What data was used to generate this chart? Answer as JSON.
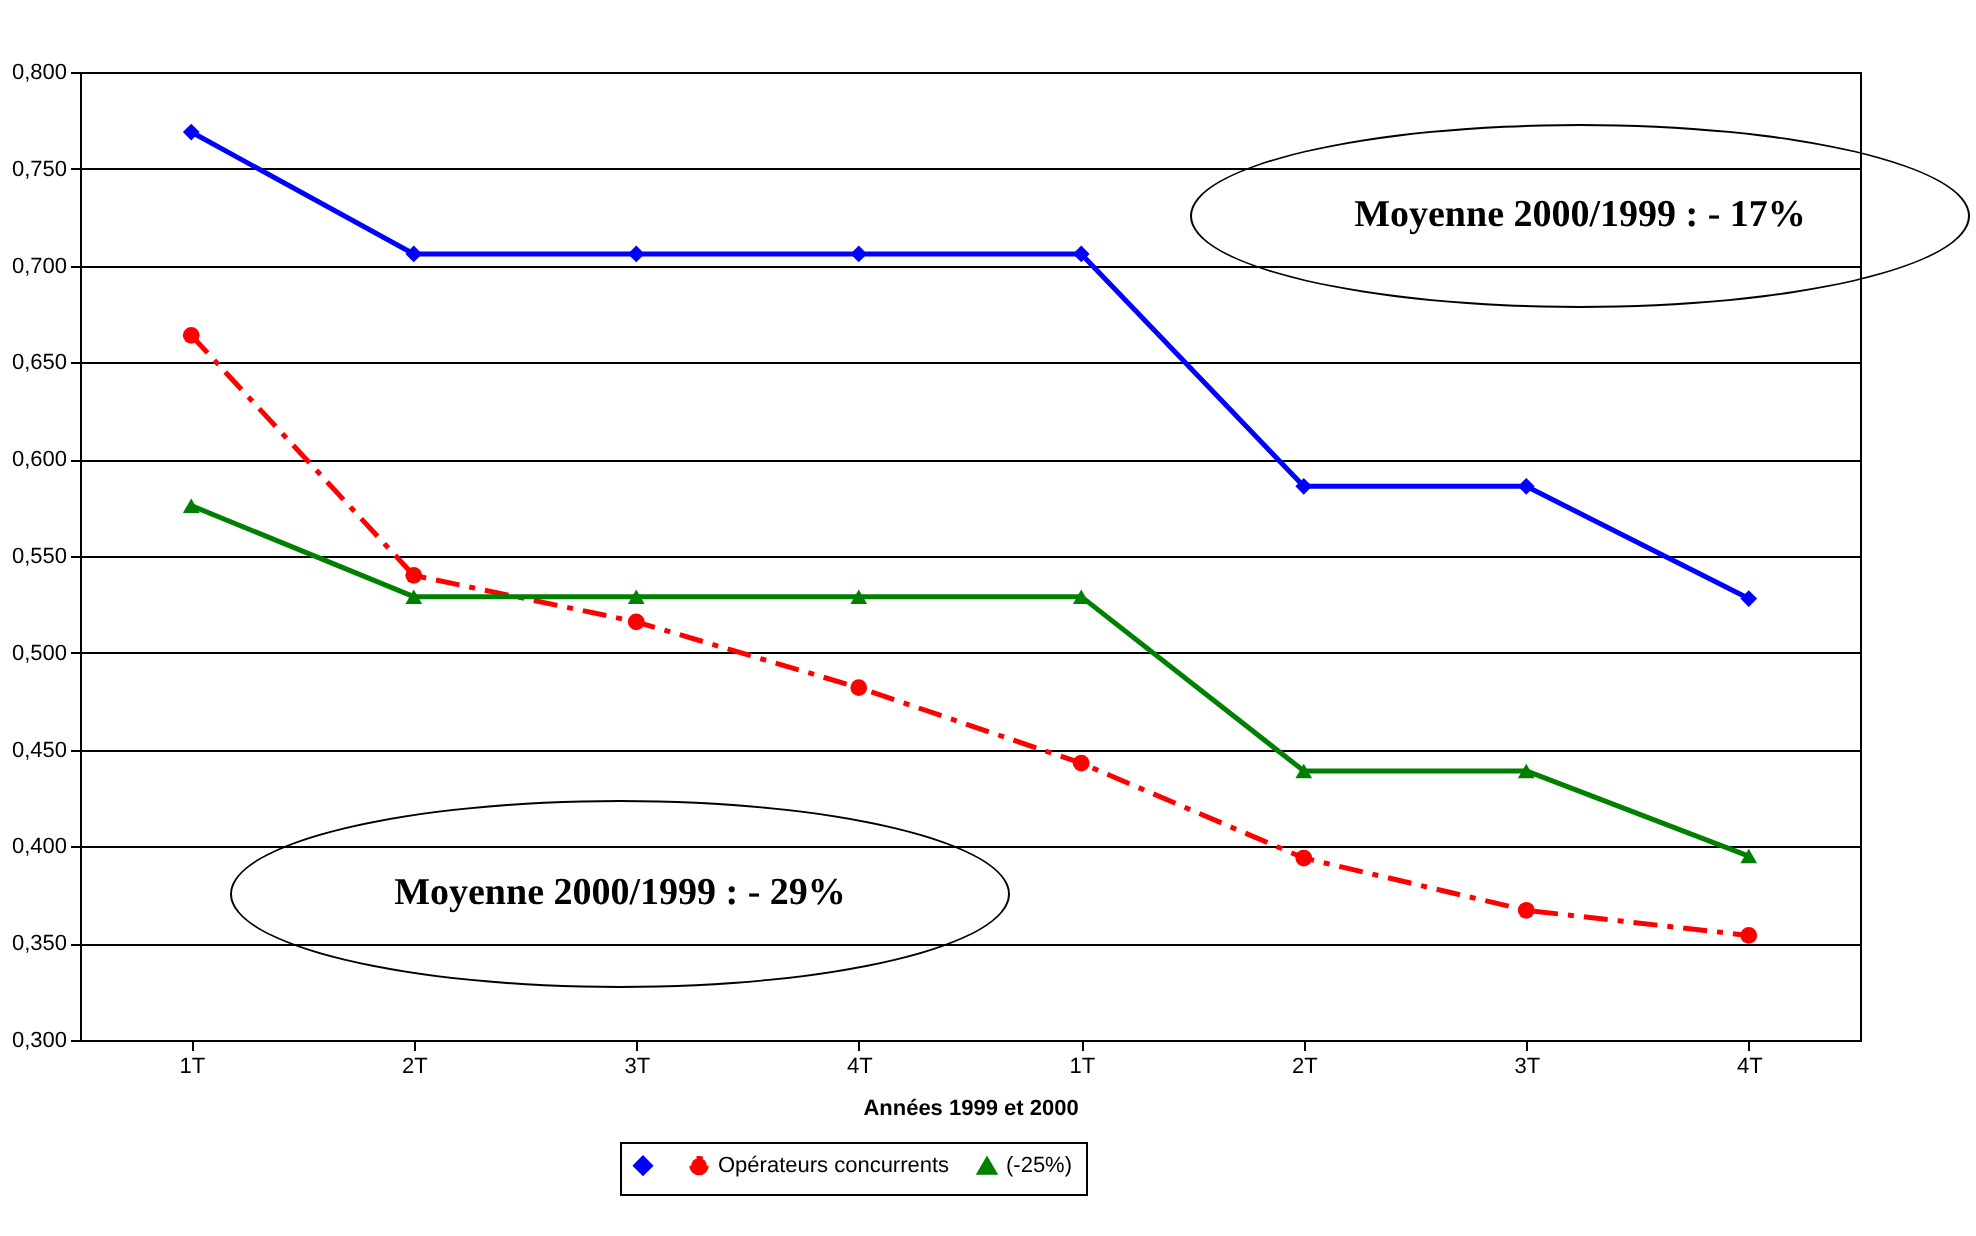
{
  "chart_data": {
    "type": "line",
    "xlabel": "Années 1999 et 2000",
    "categories": [
      "1T",
      "2T",
      "3T",
      "4T",
      "1T",
      "2T",
      "3T",
      "4T"
    ],
    "series": [
      {
        "color": "#0000ff",
        "marker": "diamond",
        "line_style": "solid",
        "values": [
          0.769,
          0.706,
          0.706,
          0.706,
          0.706,
          0.586,
          0.586,
          0.528
        ]
      },
      {
        "name": "Opérateurs concurrents",
        "color": "#ff0000",
        "marker": "circle",
        "line_style": "dashed",
        "values": [
          0.664,
          0.54,
          0.516,
          0.482,
          0.443,
          0.394,
          0.367,
          0.354
        ]
      },
      {
        "name": "(-25%)",
        "color": "#008000",
        "marker": "triangle",
        "line_style": "solid",
        "values": [
          0.576,
          0.529,
          0.529,
          0.529,
          0.529,
          0.439,
          0.439,
          0.395
        ]
      }
    ],
    "ylim": [
      0.3,
      0.8
    ],
    "yticks": [
      {
        "value": 0.3,
        "label": "0,300"
      },
      {
        "value": 0.35,
        "label": "0,350"
      },
      {
        "value": 0.4,
        "label": "0,400"
      },
      {
        "value": 0.45,
        "label": "0,450"
      },
      {
        "value": 0.5,
        "label": "0,500"
      },
      {
        "value": 0.55,
        "label": "0,550"
      },
      {
        "value": 0.6,
        "label": "0,600"
      },
      {
        "value": 0.65,
        "label": "0,650"
      },
      {
        "value": 0.7,
        "label": "0,700"
      },
      {
        "value": 0.75,
        "label": "0,750"
      },
      {
        "value": 0.8,
        "label": "0,800"
      }
    ],
    "grid": "y",
    "legend": "bottom",
    "annotations": [
      "Moyenne 2000/1999 : - 17%",
      "Moyenne 2000/1999 : - 29%"
    ]
  }
}
